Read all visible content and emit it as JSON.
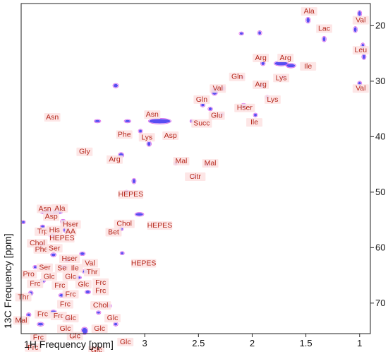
{
  "chart_data": {
    "type": "scatter",
    "xlabel": "1H Frequency [ppm]",
    "ylabel": "13C Frequency [ppm]",
    "xlim": [
      4.15,
      0.9
    ],
    "ylim": [
      16,
      75.5
    ],
    "x_reversed": true,
    "y_reversed": true,
    "grid": false,
    "x_ticks": [
      {
        "value": 3,
        "label": "3"
      },
      {
        "value": 2.5,
        "label": "2.5"
      },
      {
        "value": 2,
        "label": "2"
      },
      {
        "value": 1.5,
        "label": "1.5"
      },
      {
        "value": 1,
        "label": "1"
      }
    ],
    "y_ticks": [
      {
        "value": 20,
        "label": "20"
      },
      {
        "value": 30,
        "label": "30"
      },
      {
        "value": 40,
        "label": "40"
      },
      {
        "value": 50,
        "label": "50"
      },
      {
        "value": 60,
        "label": "60"
      },
      {
        "value": 70,
        "label": "70"
      }
    ],
    "colors": {
      "contour": "#3b2ef0",
      "contour_edge": "#d23ce6",
      "label_text": "#b5281c",
      "label_bg": "#fde3e3"
    },
    "peaks": [
      {
        "x": 1.48,
        "y": 19.0,
        "w": 0.03,
        "h": 0.9
      },
      {
        "x": 1.0,
        "y": 17.8,
        "w": 0.025,
        "h": 0.9
      },
      {
        "x": 1.04,
        "y": 20.7,
        "w": 0.02,
        "h": 0.9
      },
      {
        "x": 1.33,
        "y": 22.4,
        "w": 0.025,
        "h": 0.8
      },
      {
        "x": 0.97,
        "y": 23.8,
        "w": 0.02,
        "h": 1.2
      },
      {
        "x": 0.96,
        "y": 25.6,
        "w": 0.02,
        "h": 0.8
      },
      {
        "x": 1.93,
        "y": 21.3,
        "w": 0.02,
        "h": 0.6
      },
      {
        "x": 2.1,
        "y": 21.4,
        "w": 0.03,
        "h": 0.4
      },
      {
        "x": 1.9,
        "y": 26.8,
        "w": 0.03,
        "h": 0.6
      },
      {
        "x": 1.73,
        "y": 26.8,
        "w": 0.12,
        "h": 0.7
      },
      {
        "x": 1.64,
        "y": 27.2,
        "w": 0.08,
        "h": 0.6
      },
      {
        "x": 2.09,
        "y": 29.3,
        "w": 0.03,
        "h": 0.5
      },
      {
        "x": 1.91,
        "y": 30.8,
        "w": 0.03,
        "h": 0.7
      },
      {
        "x": 1.86,
        "y": 32.9,
        "w": 0.03,
        "h": 0.5
      },
      {
        "x": 1.71,
        "y": 29.2,
        "w": 0.03,
        "h": 0.5
      },
      {
        "x": 2.35,
        "y": 31.8,
        "w": 0.05,
        "h": 1.3
      },
      {
        "x": 2.27,
        "y": 31.3,
        "w": 0.03,
        "h": 0.7
      },
      {
        "x": 1.0,
        "y": 30.4,
        "w": 0.02,
        "h": 0.6
      },
      {
        "x": 2.46,
        "y": 34.3,
        "w": 0.03,
        "h": 0.5
      },
      {
        "x": 2.08,
        "y": 34.5,
        "w": 0.05,
        "h": 0.8
      },
      {
        "x": 1.97,
        "y": 36.1,
        "w": 0.025,
        "h": 0.5
      },
      {
        "x": 2.39,
        "y": 35.0,
        "w": 0.03,
        "h": 0.5
      },
      {
        "x": 2.28,
        "y": 36.0,
        "w": 0.03,
        "h": 0.5
      },
      {
        "x": 2.86,
        "y": 37.2,
        "w": 0.2,
        "h": 0.8
      },
      {
        "x": 2.56,
        "y": 37.2,
        "w": 0.025,
        "h": 0.4
      },
      {
        "x": 2.96,
        "y": 41.3,
        "w": 0.03,
        "h": 0.7
      },
      {
        "x": 3.04,
        "y": 39.0,
        "w": 0.02,
        "h": 0.5
      },
      {
        "x": 3.22,
        "y": 43.3,
        "w": 0.04,
        "h": 0.7
      },
      {
        "x": 3.1,
        "y": 48.0,
        "w": 0.015,
        "h": 0.8
      },
      {
        "x": 3.17,
        "y": 50.0,
        "w": 0.05,
        "h": 0.5
      },
      {
        "x": 3.27,
        "y": 30.8,
        "w": 0.04,
        "h": 0.6
      },
      {
        "x": 3.44,
        "y": 37.2,
        "w": 0.05,
        "h": 0.4
      },
      {
        "x": 3.16,
        "y": 37.2,
        "w": 0.05,
        "h": 0.4
      },
      {
        "x": 2.71,
        "y": 44.8,
        "w": 0.025,
        "h": 0.5
      },
      {
        "x": 2.42,
        "y": 45.0,
        "w": 0.025,
        "h": 0.5
      },
      {
        "x": 2.54,
        "y": 47.2,
        "w": 0.02,
        "h": 0.4
      },
      {
        "x": 3.05,
        "y": 54.0,
        "w": 0.07,
        "h": 0.5
      },
      {
        "x": 3.22,
        "y": 56.6,
        "w": 0.03,
        "h": 0.6
      },
      {
        "x": 3.21,
        "y": 61.0,
        "w": 0.02,
        "h": 0.4
      },
      {
        "x": 3.56,
        "y": 75.0,
        "w": 0.05,
        "h": 1.1
      },
      {
        "x": 3.87,
        "y": 53.6,
        "w": 0.2,
        "h": 0.7
      },
      {
        "x": 3.76,
        "y": 55.3,
        "w": 0.04,
        "h": 0.6
      },
      {
        "x": 3.73,
        "y": 56.8,
        "w": 0.05,
        "h": 0.8
      },
      {
        "x": 3.86,
        "y": 57.8,
        "w": 0.05,
        "h": 0.5
      },
      {
        "x": 3.96,
        "y": 59.6,
        "w": 0.04,
        "h": 0.6
      },
      {
        "x": 3.85,
        "y": 61.3,
        "w": 0.04,
        "h": 0.5
      },
      {
        "x": 3.58,
        "y": 61.1,
        "w": 0.04,
        "h": 0.5
      },
      {
        "x": 3.72,
        "y": 62.3,
        "w": 0.05,
        "h": 0.5
      },
      {
        "x": 3.75,
        "y": 63.5,
        "w": 0.06,
        "h": 0.5
      },
      {
        "x": 3.55,
        "y": 64.3,
        "w": 0.06,
        "h": 0.5
      },
      {
        "x": 3.62,
        "y": 65.4,
        "w": 0.05,
        "h": 0.4
      },
      {
        "x": 3.95,
        "y": 66.0,
        "w": 0.04,
        "h": 0.5
      },
      {
        "x": 3.77,
        "y": 68.6,
        "w": 0.05,
        "h": 0.5
      },
      {
        "x": 3.53,
        "y": 68.0,
        "w": 0.04,
        "h": 0.5
      },
      {
        "x": 3.33,
        "y": 70.5,
        "w": 0.03,
        "h": 0.5
      },
      {
        "x": 3.85,
        "y": 71.6,
        "w": 0.05,
        "h": 0.5
      },
      {
        "x": 3.72,
        "y": 72.9,
        "w": 0.05,
        "h": 0.5
      },
      {
        "x": 3.97,
        "y": 73.8,
        "w": 0.05,
        "h": 0.5
      },
      {
        "x": 3.43,
        "y": 71.7,
        "w": 0.03,
        "h": 0.4
      },
      {
        "x": 3.27,
        "y": 73.8,
        "w": 0.03,
        "h": 0.5
      },
      {
        "x": 4.08,
        "y": 72.1,
        "w": 0.03,
        "h": 0.5
      },
      {
        "x": 4.06,
        "y": 68.2,
        "w": 0.03,
        "h": 0.6
      },
      {
        "x": 4.02,
        "y": 63.5,
        "w": 0.02,
        "h": 0.4
      },
      {
        "x": 4.13,
        "y": 55.4,
        "w": 0.02,
        "h": 0.4
      },
      {
        "x": 3.95,
        "y": 56.2,
        "w": 0.03,
        "h": 0.4
      }
    ],
    "annotations": [
      {
        "x": 1.47,
        "y": 17.8,
        "text": "Ala"
      },
      {
        "x": 1.33,
        "y": 20.9,
        "text": "Lac"
      },
      {
        "x": 0.99,
        "y": 19.4,
        "text": "Val"
      },
      {
        "x": 0.99,
        "y": 24.8,
        "text": "Leu"
      },
      {
        "x": 1.48,
        "y": 27.7,
        "text": "Ile"
      },
      {
        "x": 0.99,
        "y": 31.7,
        "text": "Val"
      },
      {
        "x": 1.92,
        "y": 26.2,
        "text": "Arg"
      },
      {
        "x": 1.69,
        "y": 26.2,
        "text": "Arg"
      },
      {
        "x": 2.14,
        "y": 29.6,
        "text": "Gln"
      },
      {
        "x": 1.73,
        "y": 29.8,
        "text": "Lys"
      },
      {
        "x": 1.92,
        "y": 31.0,
        "text": "Arg"
      },
      {
        "x": 2.32,
        "y": 31.7,
        "text": "Val"
      },
      {
        "x": 1.81,
        "y": 33.7,
        "text": "Lys"
      },
      {
        "x": 2.47,
        "y": 33.7,
        "text": "Gln"
      },
      {
        "x": 2.07,
        "y": 35.2,
        "text": "Hser"
      },
      {
        "x": 2.33,
        "y": 36.6,
        "text": "Glu"
      },
      {
        "x": 2.47,
        "y": 38.0,
        "text": "Succ"
      },
      {
        "x": 1.98,
        "y": 37.8,
        "text": "Ile"
      },
      {
        "x": 2.93,
        "y": 36.4,
        "text": "Asn"
      },
      {
        "x": 3.86,
        "y": 36.9,
        "text": "Asn"
      },
      {
        "x": 3.19,
        "y": 40.0,
        "text": "Phe"
      },
      {
        "x": 2.98,
        "y": 40.5,
        "text": "Lys"
      },
      {
        "x": 2.76,
        "y": 40.2,
        "text": "Asp"
      },
      {
        "x": 3.56,
        "y": 43.1,
        "text": "Gly"
      },
      {
        "x": 3.28,
        "y": 44.5,
        "text": "Arg"
      },
      {
        "x": 2.66,
        "y": 44.8,
        "text": "Mal"
      },
      {
        "x": 2.39,
        "y": 45.2,
        "text": "Mal"
      },
      {
        "x": 2.53,
        "y": 47.6,
        "text": "Citr"
      },
      {
        "x": 3.13,
        "y": 50.8,
        "text": "HEPES"
      },
      {
        "x": 3.93,
        "y": 53.4,
        "text": "Asn"
      },
      {
        "x": 3.79,
        "y": 53.3,
        "text": "Ala"
      },
      {
        "x": 3.87,
        "y": 54.8,
        "text": "Asp"
      },
      {
        "x": 3.69,
        "y": 56.2,
        "text": "Hser"
      },
      {
        "x": 3.69,
        "y": 57.5,
        "text": "AA"
      },
      {
        "x": 3.95,
        "y": 57.5,
        "text": "Trp"
      },
      {
        "x": 3.84,
        "y": 57.2,
        "text": "His"
      },
      {
        "x": 3.77,
        "y": 58.7,
        "text": "HEPES"
      },
      {
        "x": 3.19,
        "y": 56.1,
        "text": "Chol"
      },
      {
        "x": 3.29,
        "y": 57.6,
        "text": "Bet"
      },
      {
        "x": 2.86,
        "y": 56.4,
        "text": "HEPES"
      },
      {
        "x": 4.0,
        "y": 59.6,
        "text": "Chol"
      },
      {
        "x": 3.96,
        "y": 60.7,
        "text": "Phe"
      },
      {
        "x": 3.84,
        "y": 60.5,
        "text": "Ser"
      },
      {
        "x": 3.7,
        "y": 62.4,
        "text": "Hser"
      },
      {
        "x": 3.51,
        "y": 63.2,
        "text": "Val"
      },
      {
        "x": 3.01,
        "y": 63.2,
        "text": "HEPES"
      },
      {
        "x": 3.93,
        "y": 64.0,
        "text": "Ser"
      },
      {
        "x": 3.76,
        "y": 64.1,
        "text": "Ser"
      },
      {
        "x": 3.65,
        "y": 64.1,
        "text": "Ile"
      },
      {
        "x": 3.49,
        "y": 64.8,
        "text": "Thr"
      },
      {
        "x": 4.08,
        "y": 65.2,
        "text": "Pro"
      },
      {
        "x": 3.89,
        "y": 65.6,
        "text": "Glc"
      },
      {
        "x": 3.69,
        "y": 65.6,
        "text": "Glc"
      },
      {
        "x": 3.41,
        "y": 66.7,
        "text": "Frc"
      },
      {
        "x": 4.02,
        "y": 66.9,
        "text": "Frc"
      },
      {
        "x": 3.79,
        "y": 67.2,
        "text": "Frc"
      },
      {
        "x": 3.57,
        "y": 67.0,
        "text": "Glc"
      },
      {
        "x": 3.41,
        "y": 68.2,
        "text": "Frc"
      },
      {
        "x": 3.69,
        "y": 68.8,
        "text": "Frc"
      },
      {
        "x": 4.13,
        "y": 69.3,
        "text": "Thr"
      },
      {
        "x": 3.74,
        "y": 70.6,
        "text": "Frc"
      },
      {
        "x": 3.41,
        "y": 70.8,
        "text": "Chol"
      },
      {
        "x": 3.95,
        "y": 72.4,
        "text": "Frc"
      },
      {
        "x": 3.8,
        "y": 72.7,
        "text": "Frc"
      },
      {
        "x": 3.69,
        "y": 73.1,
        "text": "Glc"
      },
      {
        "x": 3.3,
        "y": 73.1,
        "text": "Glc"
      },
      {
        "x": 4.15,
        "y": 73.5,
        "text": "Mal"
      },
      {
        "x": 3.74,
        "y": 75.0,
        "text": "Glc"
      },
      {
        "x": 3.42,
        "y": 75.0,
        "text": "Glc"
      },
      {
        "x": 3.65,
        "y": 76.3,
        "text": "Glc"
      },
      {
        "x": 3.99,
        "y": 76.6,
        "text": "Frc"
      },
      {
        "x": 3.18,
        "y": 77.4,
        "text": "Glc"
      },
      {
        "x": 4.04,
        "y": 78.4,
        "text": "Frc"
      },
      {
        "x": 3.45,
        "y": 78.9,
        "text": "Glc"
      }
    ]
  }
}
